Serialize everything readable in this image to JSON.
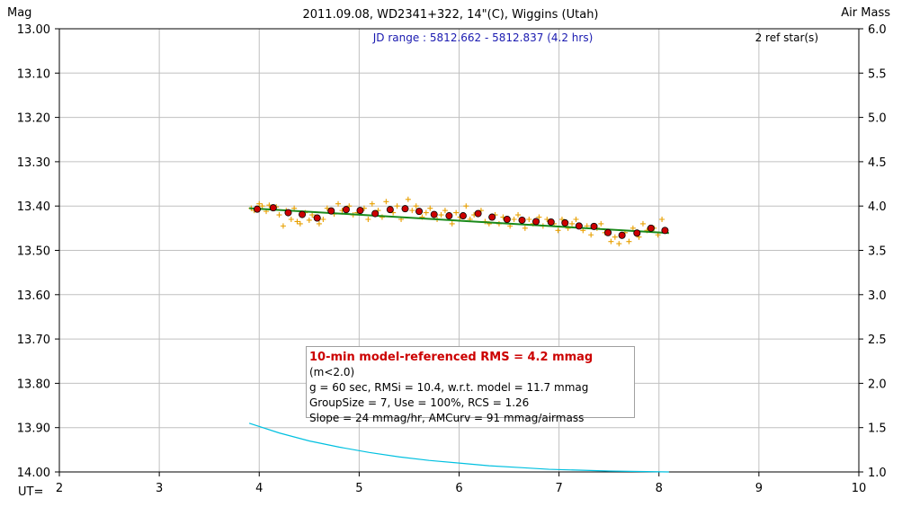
{
  "chart_data": {
    "type": "scatter",
    "title": "2011.09.08, WD2341+322, 14\"(C), Wiggins (Utah)",
    "subtitle": "JD range : 5812.662 - 5812.837 (4.2 hrs)",
    "annotation_ref": "2 ref star(s)",
    "ylabel_left": "Mag",
    "ylabel_right": "Air Mass",
    "xlabel": "UT=",
    "x_ticks": [
      "2",
      "3",
      "4",
      "5",
      "6",
      "7",
      "8",
      "9",
      "10"
    ],
    "y_left_ticks": [
      "13.00",
      "13.10",
      "13.20",
      "13.30",
      "13.40",
      "13.50",
      "13.60",
      "13.70",
      "13.80",
      "13.90",
      "14.00"
    ],
    "y_right_ticks": [
      "6.0",
      "5.5",
      "5.0",
      "4.5",
      "4.0",
      "3.5",
      "3.0",
      "2.5",
      "2.0",
      "1.5",
      "1.0"
    ],
    "xlim": [
      2,
      10
    ],
    "ylim_mag": [
      13.0,
      14.0
    ],
    "ylim_airmass": [
      1.0,
      6.0
    ],
    "grid": true,
    "colors": {
      "raw_points": "#e8a000",
      "binned_points": "#cc0000",
      "model_line": "#1a8a1a",
      "airmass_line": "#00c0e0"
    },
    "binned_series": {
      "name": "",
      "x": [
        3.98,
        4.14,
        4.29,
        4.43,
        4.58,
        4.72,
        4.87,
        5.01,
        5.16,
        5.31,
        5.46,
        5.6,
        5.75,
        5.9,
        6.04,
        6.19,
        6.33,
        6.48,
        6.63,
        6.77,
        6.92,
        7.06,
        7.2,
        7.35,
        7.49,
        7.63,
        7.78,
        7.92,
        8.06
      ],
      "y": [
        13.407,
        13.404,
        13.415,
        13.419,
        13.427,
        13.411,
        13.408,
        13.41,
        13.417,
        13.408,
        13.406,
        13.412,
        13.419,
        13.422,
        13.422,
        13.417,
        13.425,
        13.43,
        13.432,
        13.435,
        13.436,
        13.438,
        13.445,
        13.446,
        13.46,
        13.466,
        13.461,
        13.45,
        13.455
      ]
    },
    "raw_series": {
      "name": "",
      "x": [
        3.92,
        3.95,
        4.0,
        4.03,
        4.07,
        4.1,
        4.17,
        4.2,
        4.24,
        4.27,
        4.32,
        4.35,
        4.38,
        4.41,
        4.46,
        4.5,
        4.53,
        4.56,
        4.6,
        4.64,
        4.68,
        4.75,
        4.79,
        4.83,
        4.9,
        4.94,
        4.98,
        5.05,
        5.09,
        5.13,
        5.19,
        5.23,
        5.27,
        5.34,
        5.38,
        5.42,
        5.49,
        5.53,
        5.57,
        5.63,
        5.67,
        5.71,
        5.78,
        5.82,
        5.86,
        5.93,
        5.97,
        6.01,
        6.07,
        6.11,
        6.15,
        6.22,
        6.26,
        6.3,
        6.36,
        6.4,
        6.44,
        6.51,
        6.55,
        6.59,
        6.66,
        6.7,
        6.74,
        6.8,
        6.84,
        6.88,
        6.95,
        6.99,
        7.03,
        7.09,
        7.13,
        7.17,
        7.24,
        7.28,
        7.32,
        7.38,
        7.42,
        7.46,
        7.52,
        7.56,
        7.6,
        7.66,
        7.7,
        7.74,
        7.8,
        7.84,
        7.88,
        7.95,
        7.99,
        8.03
      ],
      "y": [
        13.405,
        13.41,
        13.395,
        13.4,
        13.412,
        13.398,
        13.402,
        13.42,
        13.445,
        13.41,
        13.43,
        13.405,
        13.435,
        13.44,
        13.415,
        13.432,
        13.42,
        13.425,
        13.44,
        13.43,
        13.405,
        13.418,
        13.395,
        13.41,
        13.4,
        13.42,
        13.415,
        13.405,
        13.43,
        13.395,
        13.41,
        13.425,
        13.39,
        13.415,
        13.4,
        13.43,
        13.385,
        13.41,
        13.4,
        13.425,
        13.415,
        13.405,
        13.43,
        13.42,
        13.41,
        13.44,
        13.415,
        13.425,
        13.4,
        13.43,
        13.42,
        13.41,
        13.435,
        13.44,
        13.42,
        13.44,
        13.425,
        13.445,
        13.43,
        13.42,
        13.45,
        13.43,
        13.44,
        13.425,
        13.445,
        13.43,
        13.44,
        13.455,
        13.43,
        13.45,
        13.44,
        13.43,
        13.455,
        13.445,
        13.465,
        13.45,
        13.44,
        13.46,
        13.48,
        13.47,
        13.485,
        13.46,
        13.48,
        13.45,
        13.47,
        13.44,
        13.455,
        13.45,
        13.465,
        13.43
      ]
    },
    "model_line": {
      "name": "",
      "x": [
        3.9,
        8.1
      ],
      "y": [
        13.405,
        13.461
      ]
    },
    "airmass_series": {
      "name": "",
      "x": [
        3.9,
        4.2,
        4.5,
        4.8,
        5.1,
        5.4,
        5.7,
        6.0,
        6.3,
        6.6,
        6.9,
        7.2,
        7.5,
        7.8,
        8.1
      ],
      "y": [
        1.55,
        1.44,
        1.35,
        1.28,
        1.22,
        1.17,
        1.13,
        1.1,
        1.07,
        1.05,
        1.03,
        1.02,
        1.01,
        1.005,
        1.0
      ]
    }
  },
  "info_box": {
    "rms_line": "10-min model-referenced RMS = 4.2 mmag",
    "rms_suffix": " (m<2.0)",
    "line2": "g = 60 sec, RMSi = 10.4, w.r.t. model = 11.7 mmag",
    "line3": "GroupSize = 7, Use = 100%, RCS = 1.26",
    "line4": "Slope = 24 mmag/hr, AMCurv = 91 mmag/airmass"
  }
}
